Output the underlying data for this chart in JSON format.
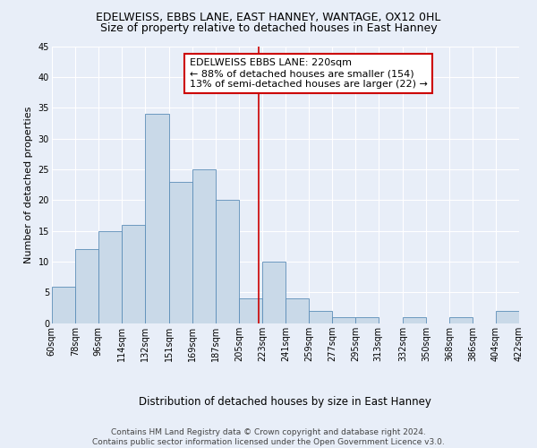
{
  "title": "EDELWEISS, EBBS LANE, EAST HANNEY, WANTAGE, OX12 0HL",
  "subtitle": "Size of property relative to detached houses in East Hanney",
  "xlabel": "Distribution of detached houses by size in East Hanney",
  "ylabel": "Number of detached properties",
  "bin_edges": [
    60,
    78,
    96,
    114,
    132,
    151,
    169,
    187,
    205,
    223,
    241,
    259,
    277,
    295,
    313,
    332,
    350,
    368,
    386,
    404,
    422
  ],
  "counts": [
    6,
    12,
    15,
    16,
    34,
    23,
    25,
    20,
    4,
    10,
    4,
    2,
    1,
    1,
    0,
    1,
    0,
    1,
    0,
    2
  ],
  "bar_color": "#c9d9e8",
  "bar_edge_color": "#5b8db8",
  "vline_x": 220,
  "vline_color": "#cc0000",
  "annotation_line1": "EDELWEISS EBBS LANE: 220sqm",
  "annotation_line2": "← 88% of detached houses are smaller (154)",
  "annotation_line3": "13% of semi-detached houses are larger (22) →",
  "annotation_box_color": "#ffffff",
  "annotation_box_edge": "#cc0000",
  "ylim": [
    0,
    45
  ],
  "yticks": [
    0,
    5,
    10,
    15,
    20,
    25,
    30,
    35,
    40,
    45
  ],
  "tick_labels": [
    "60sqm",
    "78sqm",
    "96sqm",
    "114sqm",
    "132sqm",
    "151sqm",
    "169sqm",
    "187sqm",
    "205sqm",
    "223sqm",
    "241sqm",
    "259sqm",
    "277sqm",
    "295sqm",
    "313sqm",
    "332sqm",
    "350sqm",
    "368sqm",
    "386sqm",
    "404sqm",
    "422sqm"
  ],
  "footer_text": "Contains HM Land Registry data © Crown copyright and database right 2024.\nContains public sector information licensed under the Open Government Licence v3.0.",
  "bg_color": "#e8eef8",
  "plot_bg_color": "#e8eef8",
  "title_fontsize": 9,
  "subtitle_fontsize": 9,
  "xlabel_fontsize": 8.5,
  "ylabel_fontsize": 8,
  "tick_fontsize": 7,
  "annotation_fontsize": 8,
  "footer_fontsize": 6.5
}
